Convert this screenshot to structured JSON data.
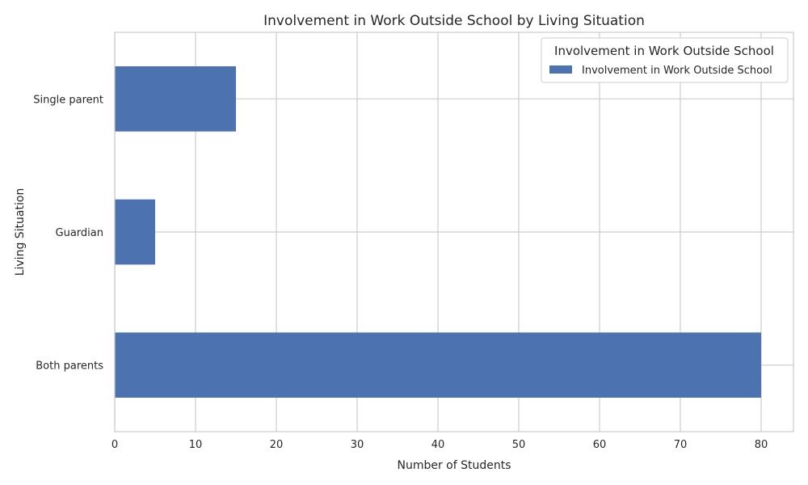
{
  "chart_data": {
    "type": "bar",
    "orientation": "horizontal",
    "title": "Involvement in Work Outside School by Living Situation",
    "xlabel": "Number of Students",
    "ylabel": "Living Situation",
    "categories": [
      "Both parents",
      "Guardian",
      "Single parent"
    ],
    "series": [
      {
        "name": "Involvement in Work Outside School",
        "values": [
          80,
          5,
          15
        ],
        "color": "#4c72b0"
      }
    ],
    "xlim": [
      0,
      84
    ],
    "xticks": [
      0,
      10,
      20,
      30,
      40,
      50,
      60,
      70,
      80
    ],
    "grid": true,
    "legend": {
      "title": "Involvement in Work Outside School",
      "placement": "top-right"
    }
  }
}
